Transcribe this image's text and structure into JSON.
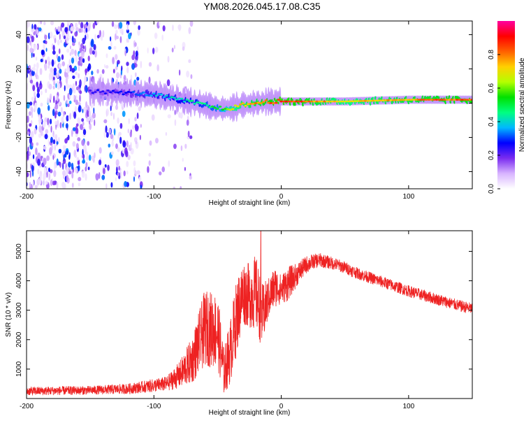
{
  "title": "YM08.2026.045.17.08.C35",
  "chart_data": [
    {
      "type": "heatmap",
      "name": "spectrogram",
      "xlabel": "Height of straight line (km)",
      "ylabel": "Frequency (Hz)",
      "xlim": [
        -200,
        150
      ],
      "ylim": [
        -50,
        48
      ],
      "xticks": [
        -200,
        -100,
        0,
        100
      ],
      "yticks": [
        -40,
        -20,
        0,
        20,
        40
      ],
      "colorbar": {
        "label": "Normalized spectral amplitude",
        "range": [
          0.0,
          1.0
        ],
        "ticks": [
          0.0,
          0.2,
          0.4,
          0.6,
          0.8
        ],
        "colormap": [
          "#ffffff",
          "#d8b4ff",
          "#7a2cf0",
          "#0000ff",
          "#00b8ff",
          "#00ff80",
          "#00e000",
          "#b4ff00",
          "#ffd000",
          "#ff6000",
          "#ff0000",
          "#ff00a0"
        ]
      },
      "ridge": {
        "x": [
          -150,
          -120,
          -100,
          -80,
          -60,
          -50,
          -40,
          -30,
          -20,
          -10,
          0,
          50,
          100,
          150
        ],
        "freq": [
          7,
          6,
          5,
          2,
          -1,
          -3,
          -3,
          -1,
          0,
          1,
          1,
          1,
          2,
          2
        ],
        "amplitude": [
          0.25,
          0.3,
          0.4,
          0.45,
          0.5,
          0.55,
          0.7,
          0.8,
          0.85,
          0.9,
          0.95,
          0.75,
          0.85,
          0.9
        ]
      }
    },
    {
      "type": "line",
      "name": "snr",
      "xlabel": "Height of straight line (km)",
      "ylabel": "SNR (10 * v/v)",
      "xlim": [
        -200,
        150
      ],
      "ylim": [
        0,
        5700
      ],
      "xticks": [
        -200,
        -100,
        0,
        100
      ],
      "yticks": [
        1000,
        2000,
        3000,
        4000,
        5000
      ],
      "color": "#ee2222",
      "envelope": {
        "x": [
          -200,
          -150,
          -120,
          -90,
          -80,
          -70,
          -60,
          -50,
          -45,
          -40,
          -35,
          -30,
          -25,
          -20,
          -15,
          -10,
          -5,
          0,
          5,
          10,
          15,
          20,
          25,
          30,
          35,
          40,
          50,
          60,
          80,
          100,
          120,
          140,
          150
        ],
        "mean": [
          250,
          280,
          330,
          500,
          800,
          1300,
          2400,
          2300,
          900,
          1600,
          2800,
          3600,
          3500,
          3600,
          2800,
          3400,
          3800,
          3700,
          3900,
          4100,
          4350,
          4550,
          4650,
          4700,
          4650,
          4600,
          4450,
          4250,
          3950,
          3650,
          3400,
          3150,
          3050
        ],
        "spread": [
          150,
          150,
          180,
          250,
          450,
          800,
          1300,
          1300,
          800,
          1100,
          1300,
          1100,
          1100,
          1300,
          1100,
          700,
          700,
          500,
          600,
          450,
          350,
          300,
          250,
          250,
          230,
          220,
          210,
          200,
          200,
          200,
          200,
          200,
          200
        ],
        "peak": 5700
      }
    }
  ]
}
